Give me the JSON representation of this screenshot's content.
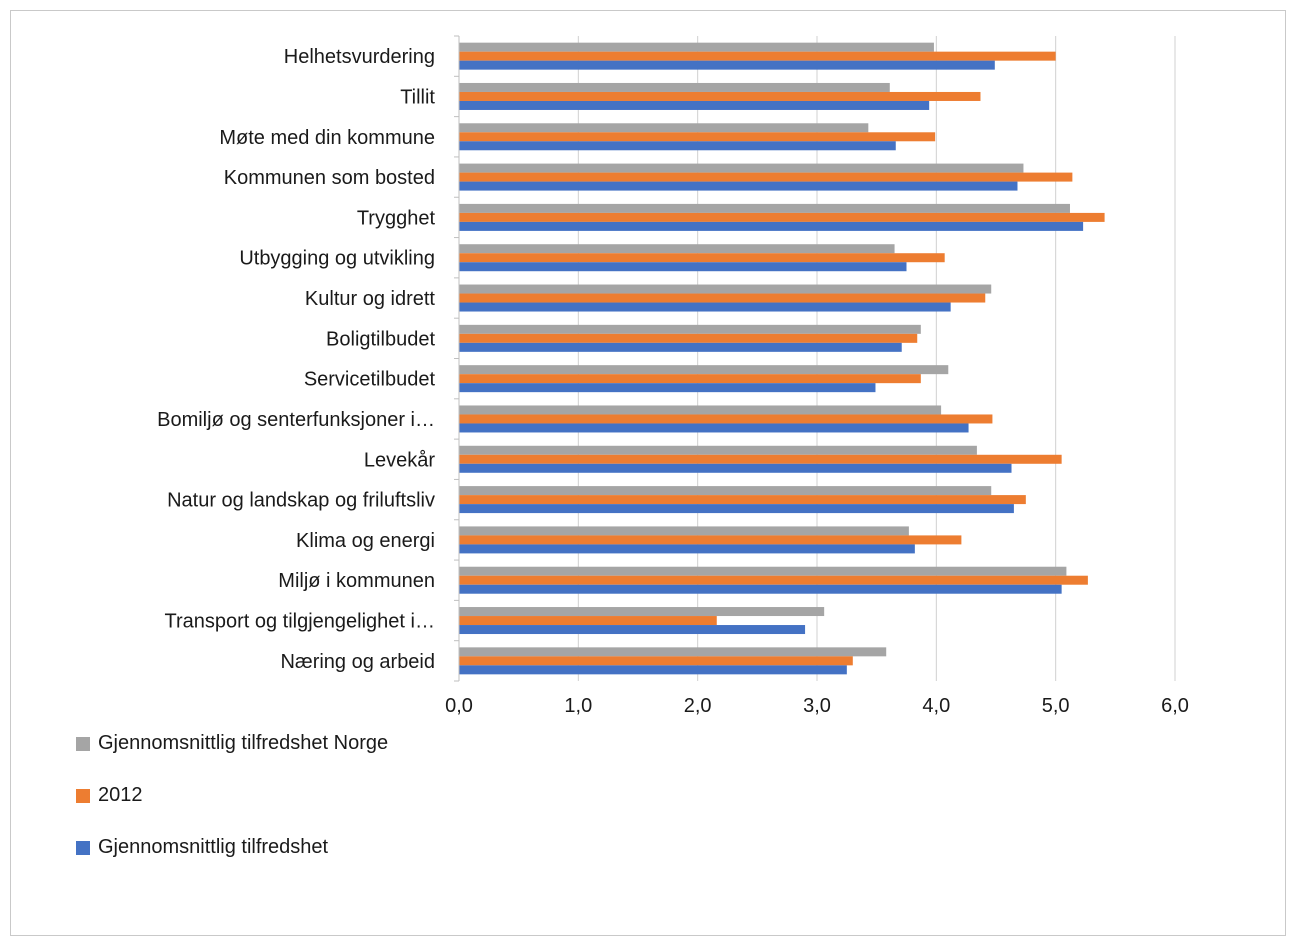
{
  "chart_data": {
    "type": "bar",
    "orientation": "horizontal",
    "categories": [
      "Helhetsvurdering",
      "Tillit",
      "Møte med din kommune",
      "Kommunen som bosted",
      "Trygghet",
      "Utbygging og utvikling",
      "Kultur og idrett",
      "Boligtilbudet",
      "Servicetilbudet",
      "Bomiljø og senterfunksjoner i…",
      "Levekår",
      "Natur og landskap og friluftsliv",
      "Klima og energi",
      "Miljø i kommunen",
      "Transport og tilgjengelighet i…",
      "Næring og arbeid"
    ],
    "series": [
      {
        "name": "Gjennomsnittlig tilfredshet Norge",
        "color": "#a5a5a5",
        "values": [
          3.98,
          3.61,
          3.43,
          4.73,
          5.12,
          3.65,
          4.46,
          3.87,
          4.1,
          4.04,
          4.34,
          4.46,
          3.77,
          5.09,
          3.06,
          3.58
        ]
      },
      {
        "name": "2012",
        "color": "#ed7d31",
        "values": [
          5.0,
          4.37,
          3.99,
          5.14,
          5.41,
          4.07,
          4.41,
          3.84,
          3.87,
          4.47,
          5.05,
          4.75,
          4.21,
          5.27,
          2.16,
          3.3
        ]
      },
      {
        "name": "Gjennomsnittlig tilfredshet",
        "color": "#4472c4",
        "values": [
          4.49,
          3.94,
          3.66,
          4.68,
          5.23,
          3.75,
          4.12,
          3.71,
          3.49,
          4.27,
          4.63,
          4.65,
          3.82,
          5.05,
          2.9,
          3.25
        ]
      }
    ],
    "xlim": [
      0,
      6
    ],
    "xticks": [
      "0,0",
      "1,0",
      "2,0",
      "3,0",
      "4,0",
      "5,0",
      "6,0"
    ],
    "grid": true,
    "legend_position": "bottom-left"
  }
}
